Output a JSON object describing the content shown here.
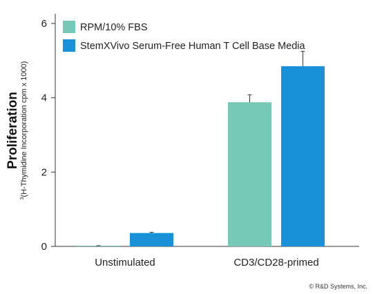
{
  "chart_data": {
    "type": "bar",
    "categories": [
      "Unstimulated",
      "CD3/CD28-primed"
    ],
    "series": [
      {
        "name": "RPM/10% FBS",
        "color": "#76c9b7",
        "values": [
          0.02,
          3.88
        ],
        "errors": [
          0.0,
          0.2
        ]
      },
      {
        "name": "StemXVivo Serum-Free Human T Cell Base Media",
        "color": "#1891d8",
        "values": [
          0.36,
          4.85
        ],
        "errors": [
          0.02,
          0.4
        ]
      }
    ],
    "ylabel": "Proliferation",
    "ylabel_sub_sup": "3",
    "ylabel_sub": "(H-Thymidine Incorporation cpm x 1000)",
    "ylim": [
      0,
      6
    ],
    "yticks": [
      "0",
      "2",
      "4",
      "6"
    ],
    "ytick_values": [
      0,
      2,
      4,
      6
    ],
    "legend_position": "top-left",
    "grid": false
  },
  "copyright": "© R&D Systems, Inc."
}
